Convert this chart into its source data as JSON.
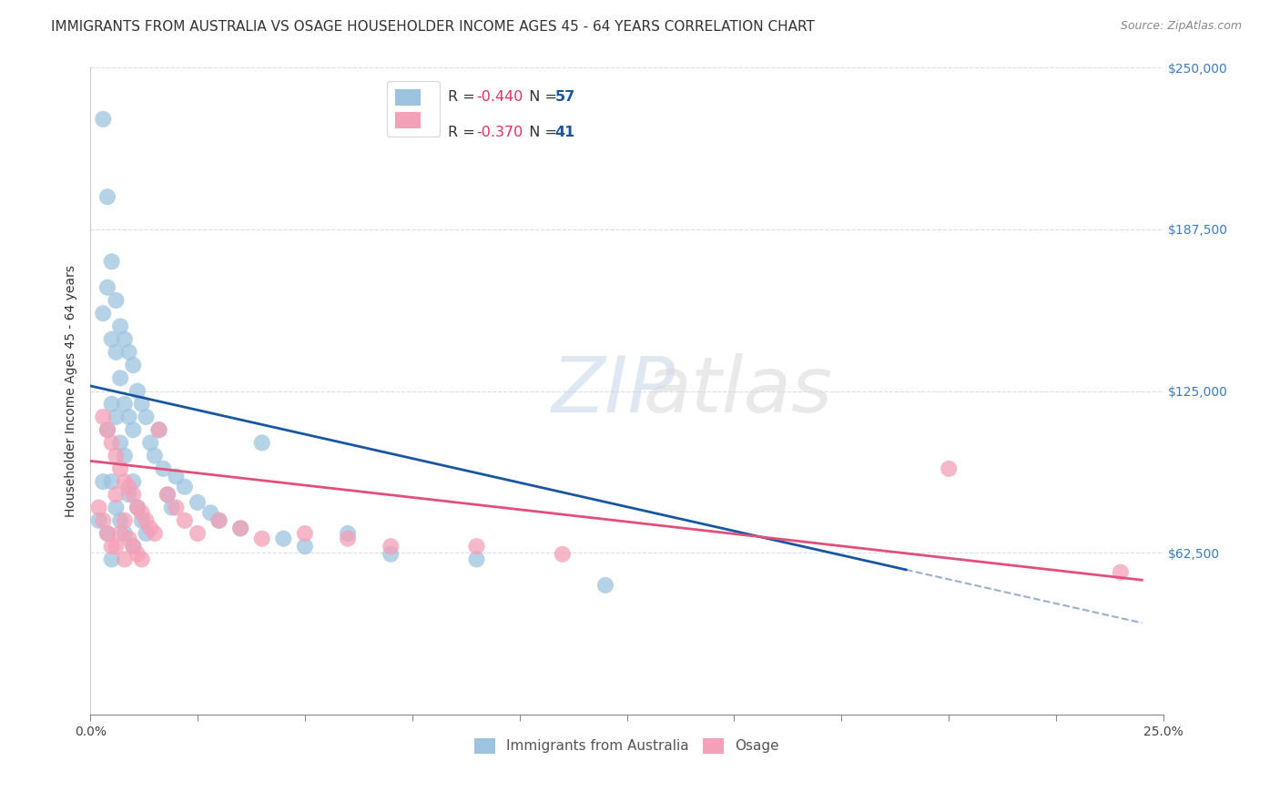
{
  "title": "IMMIGRANTS FROM AUSTRALIA VS OSAGE HOUSEHOLDER INCOME AGES 45 - 64 YEARS CORRELATION CHART",
  "source": "Source: ZipAtlas.com",
  "ylabel": "Householder Income Ages 45 - 64 years",
  "xlim": [
    0.0,
    0.25
  ],
  "ylim": [
    0,
    250000
  ],
  "ytick_labels": [
    "$250,000",
    "$187,500",
    "$125,000",
    "$62,500"
  ],
  "ytick_values": [
    250000,
    187500,
    125000,
    62500
  ],
  "watermark_zip": "ZIP",
  "watermark_atlas": "atlas",
  "blue_color": "#9dc3e0",
  "pink_color": "#f4a0b8",
  "blue_line_color": "#1a56a0",
  "pink_line_color": "#e0507a",
  "dashed_line_color": "#9ab0cc",
  "background_color": "#ffffff",
  "title_fontsize": 11,
  "source_fontsize": 9,
  "axis_label_fontsize": 10,
  "tick_fontsize": 10,
  "legend_r_color": "#e05070",
  "legend_n_color": "#2060c0",
  "blue_r": "-0.440",
  "blue_n": "57",
  "pink_r": "-0.370",
  "pink_n": "41",
  "australia_x": [
    0.002,
    0.003,
    0.003,
    0.003,
    0.004,
    0.004,
    0.004,
    0.004,
    0.005,
    0.005,
    0.005,
    0.005,
    0.005,
    0.006,
    0.006,
    0.006,
    0.006,
    0.007,
    0.007,
    0.007,
    0.007,
    0.008,
    0.008,
    0.008,
    0.008,
    0.009,
    0.009,
    0.009,
    0.01,
    0.01,
    0.01,
    0.01,
    0.011,
    0.011,
    0.012,
    0.012,
    0.013,
    0.013,
    0.014,
    0.015,
    0.016,
    0.017,
    0.018,
    0.019,
    0.02,
    0.022,
    0.025,
    0.028,
    0.03,
    0.035,
    0.04,
    0.045,
    0.05,
    0.06,
    0.07,
    0.09,
    0.12
  ],
  "australia_y": [
    75000,
    230000,
    155000,
    90000,
    200000,
    165000,
    110000,
    70000,
    175000,
    145000,
    120000,
    90000,
    60000,
    160000,
    140000,
    115000,
    80000,
    150000,
    130000,
    105000,
    75000,
    145000,
    120000,
    100000,
    70000,
    140000,
    115000,
    85000,
    135000,
    110000,
    90000,
    65000,
    125000,
    80000,
    120000,
    75000,
    115000,
    70000,
    105000,
    100000,
    110000,
    95000,
    85000,
    80000,
    92000,
    88000,
    82000,
    78000,
    75000,
    72000,
    105000,
    68000,
    65000,
    70000,
    62000,
    60000,
    50000
  ],
  "osage_x": [
    0.002,
    0.003,
    0.003,
    0.004,
    0.004,
    0.005,
    0.005,
    0.006,
    0.006,
    0.006,
    0.007,
    0.007,
    0.008,
    0.008,
    0.008,
    0.009,
    0.009,
    0.01,
    0.01,
    0.011,
    0.011,
    0.012,
    0.012,
    0.013,
    0.014,
    0.015,
    0.016,
    0.018,
    0.02,
    0.022,
    0.025,
    0.03,
    0.035,
    0.04,
    0.05,
    0.06,
    0.07,
    0.09,
    0.11,
    0.2,
    0.24
  ],
  "osage_y": [
    80000,
    115000,
    75000,
    110000,
    70000,
    105000,
    65000,
    100000,
    85000,
    65000,
    95000,
    70000,
    90000,
    75000,
    60000,
    88000,
    68000,
    85000,
    65000,
    80000,
    62000,
    78000,
    60000,
    75000,
    72000,
    70000,
    110000,
    85000,
    80000,
    75000,
    70000,
    75000,
    72000,
    68000,
    70000,
    68000,
    65000,
    65000,
    62000,
    95000,
    55000
  ]
}
